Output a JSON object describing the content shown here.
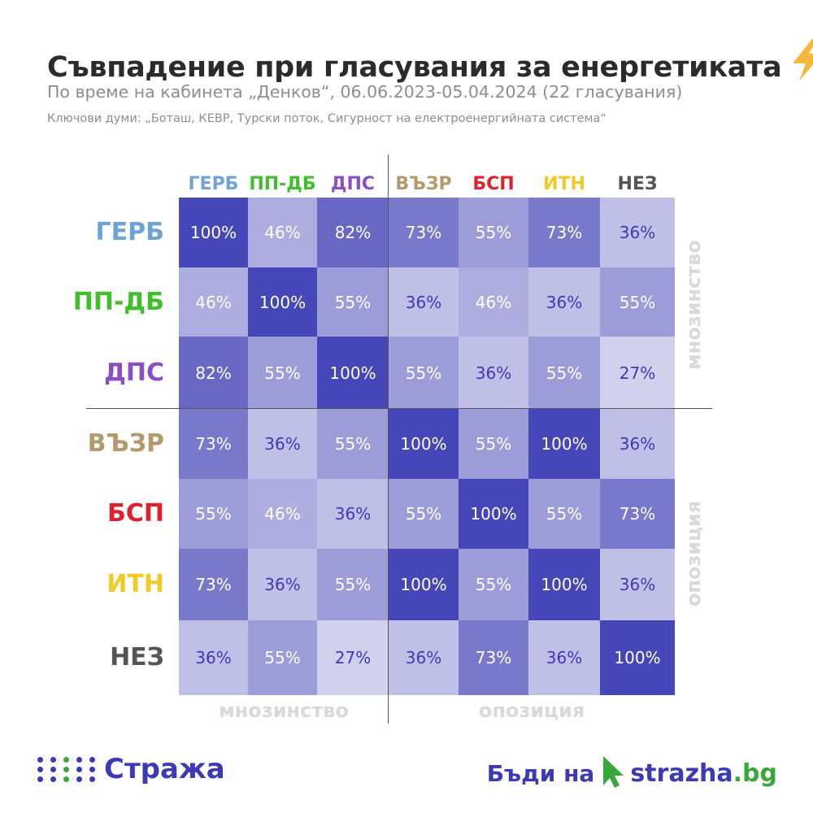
{
  "title": "Съвпадение при гласувания за енергетиката",
  "subtitle": "По време на кабинета „Денков“, 06.06.2023-05.04.2024 (22 гласувания)",
  "keywords": "Ключови думи: „Боташ, КЕВР, Турски поток, Сигурност на електроенергийната система“",
  "side_labels": {
    "majority": "мнозинство",
    "opposition": "опозиция"
  },
  "footer": {
    "logo_text": "Стража",
    "cta_text": "Бъди на",
    "site_name": "strazha",
    "site_domain": ".bg"
  },
  "colors": {
    "accent": "#3c3ab5",
    "cell_max": "#4546b7",
    "cell_min": "#d1d1ed",
    "ГЕРБ": "#6fa3d6",
    "ПП-ДБ": "#3fbf2b",
    "ДПС": "#8b4fc4",
    "ВЪЗР": "#b49a6b",
    "БСП": "#e0212b",
    "ИТН": "#f2c925",
    "НЕЗ": "#555555"
  },
  "chart_data": {
    "type": "heatmap",
    "title": "Съвпадение при гласувания за енергетиката",
    "unit": "%",
    "rows": [
      "ГЕРБ",
      "ПП-ДБ",
      "ДПС",
      "ВЪЗР",
      "БСП",
      "ИТН",
      "НЕЗ"
    ],
    "columns": [
      "ГЕРБ",
      "ПП-ДБ",
      "ДПС",
      "ВЪЗР",
      "БСП",
      "ИТН",
      "НЕЗ"
    ],
    "groups": {
      "мнозинство": [
        "ГЕРБ",
        "ПП-ДБ",
        "ДПС"
      ],
      "опозиция": [
        "ВЪЗР",
        "БСП",
        "ИТН",
        "НЕЗ"
      ]
    },
    "values": [
      [
        100,
        46,
        82,
        73,
        55,
        73,
        36
      ],
      [
        46,
        100,
        55,
        36,
        46,
        36,
        55
      ],
      [
        82,
        55,
        100,
        55,
        36,
        55,
        27
      ],
      [
        73,
        36,
        55,
        100,
        55,
        100,
        36
      ],
      [
        55,
        46,
        36,
        55,
        100,
        55,
        73
      ],
      [
        73,
        36,
        55,
        100,
        55,
        100,
        36
      ],
      [
        36,
        55,
        27,
        36,
        73,
        36,
        100
      ]
    ]
  }
}
